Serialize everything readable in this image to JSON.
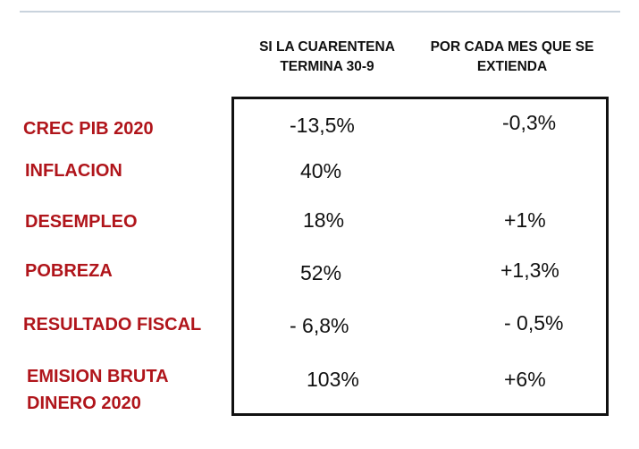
{
  "headers": {
    "col1_line1": "SI LA CUARENTENA",
    "col1_line2": "TERMINA 30-9",
    "col2_line1": "POR CADA MES QUE SE",
    "col2_line2": "EXTIENDA"
  },
  "rows": [
    {
      "label": "CREC PIB 2020",
      "col1": "-13,5%",
      "col2": "-0,3%"
    },
    {
      "label": "INFLACION",
      "col1": "40%",
      "col2": ""
    },
    {
      "label": "DESEMPLEO",
      "col1": "18%",
      "col2": "+1%"
    },
    {
      "label": "POBREZA",
      "col1": "52%",
      "col2": "+1,3%"
    },
    {
      "label": "RESULTADO FISCAL",
      "col1": "- 6,8%",
      "col2": "- 0,5%"
    },
    {
      "label_line1": "EMISION BRUTA",
      "label_line2": "DINERO 2020",
      "col1": "103%",
      "col2": "+6%"
    }
  ]
}
